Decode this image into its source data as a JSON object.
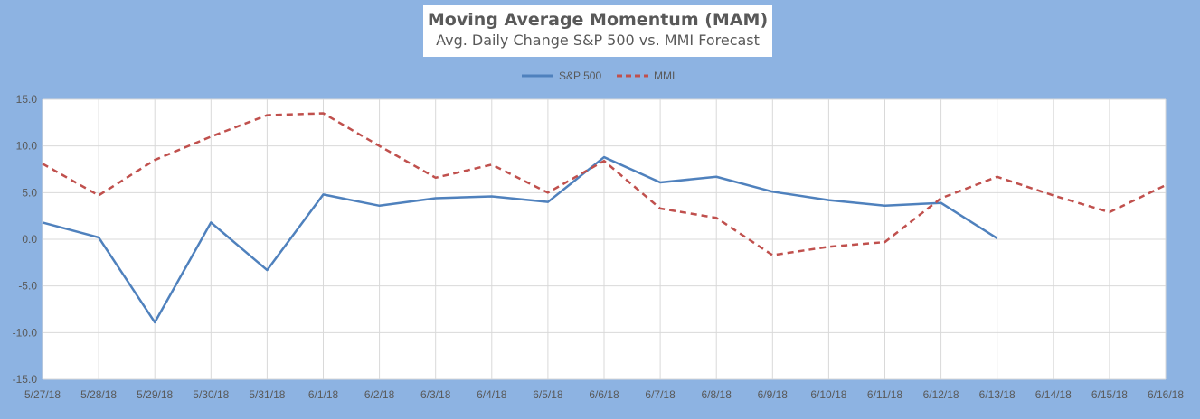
{
  "chart_data": {
    "type": "line",
    "title": "Moving Average Momentum (MAM)",
    "subtitle": "Avg. Daily Change S&P 500 vs. MMI Forecast",
    "categories": [
      "5/27/18",
      "5/28/18",
      "5/29/18",
      "5/30/18",
      "5/31/18",
      "6/1/18",
      "6/2/18",
      "6/3/18",
      "6/4/18",
      "6/5/18",
      "6/6/18",
      "6/7/18",
      "6/8/18",
      "6/9/18",
      "6/10/18",
      "6/11/18",
      "6/12/18",
      "6/13/18",
      "6/14/18",
      "6/15/18",
      "6/16/18"
    ],
    "series": [
      {
        "name": "S&P 500",
        "color": "#4f81bd",
        "dash": "solid",
        "values": [
          1.8,
          0.2,
          -8.9,
          1.8,
          -3.3,
          4.8,
          3.6,
          4.4,
          4.6,
          4.0,
          8.8,
          6.1,
          6.7,
          5.1,
          4.2,
          3.6,
          3.9,
          0.1,
          null,
          null,
          null
        ]
      },
      {
        "name": "MMI",
        "color": "#c0504d",
        "dash": "dashed",
        "values": [
          8.1,
          4.7,
          8.5,
          11.0,
          13.3,
          13.5,
          10.0,
          6.6,
          8.0,
          5.0,
          8.4,
          3.3,
          2.3,
          -1.7,
          -0.8,
          -0.3,
          4.4,
          6.7,
          4.7,
          2.9,
          5.8
        ]
      }
    ],
    "ylim": [
      -15,
      15
    ],
    "yticks": [
      "15.0",
      "10.0",
      "5.0",
      "0.0",
      "-5.0",
      "-10.0",
      "-15.0"
    ],
    "ytick_values": [
      15,
      10,
      5,
      0,
      -5,
      -10,
      -15
    ],
    "grid": true,
    "legend": "top-center"
  }
}
